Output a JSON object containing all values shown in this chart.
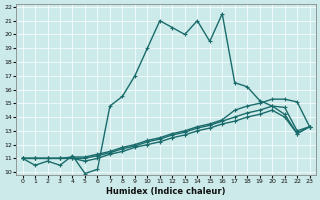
{
  "xlabel": "Humidex (Indice chaleur)",
  "xlim": [
    -0.5,
    23.5
  ],
  "ylim": [
    9.8,
    22.2
  ],
  "yticks": [
    10,
    11,
    12,
    13,
    14,
    15,
    16,
    17,
    18,
    19,
    20,
    21,
    22
  ],
  "xticks": [
    0,
    1,
    2,
    3,
    4,
    5,
    6,
    7,
    8,
    9,
    10,
    11,
    12,
    13,
    14,
    15,
    16,
    17,
    18,
    19,
    20,
    21,
    22,
    23
  ],
  "bg_color": "#cdeaea",
  "line_color": "#1a6b6b",
  "grid_color": "#b0d8d8",
  "lines": [
    {
      "x": [
        0,
        1,
        2,
        3,
        4,
        5,
        6,
        7,
        8,
        9,
        10,
        11,
        12,
        13,
        14,
        15,
        16,
        17,
        18,
        19,
        20,
        21,
        22,
        23
      ],
      "y": [
        11.0,
        10.5,
        10.8,
        10.5,
        11.2,
        9.9,
        10.2,
        14.8,
        15.5,
        17.0,
        19.0,
        21.0,
        20.5,
        20.0,
        21.0,
        19.5,
        21.5,
        16.5,
        16.2,
        15.2,
        14.8,
        14.2,
        12.8,
        13.3
      ],
      "marker": "+",
      "lw": 1.0
    },
    {
      "x": [
        0,
        1,
        2,
        3,
        4,
        5,
        6,
        7,
        8,
        9,
        10,
        11,
        12,
        13,
        14,
        15,
        16,
        17,
        18,
        19,
        20,
        21,
        22,
        23
      ],
      "y": [
        11.0,
        11.0,
        11.0,
        11.0,
        11.1,
        11.1,
        11.3,
        11.5,
        11.8,
        12.0,
        12.3,
        12.5,
        12.8,
        13.0,
        13.3,
        13.5,
        13.8,
        14.5,
        14.8,
        15.0,
        15.3,
        15.3,
        15.1,
        13.3
      ],
      "marker": "+",
      "lw": 1.0
    },
    {
      "x": [
        0,
        1,
        2,
        3,
        4,
        5,
        6,
        7,
        8,
        9,
        10,
        11,
        12,
        13,
        14,
        15,
        16,
        17,
        18,
        19,
        20,
        21,
        22,
        23
      ],
      "y": [
        11.0,
        11.0,
        11.0,
        11.0,
        11.0,
        11.0,
        11.2,
        11.4,
        11.7,
        11.9,
        12.2,
        12.4,
        12.7,
        12.9,
        13.2,
        13.4,
        13.7,
        14.0,
        14.3,
        14.5,
        14.8,
        14.7,
        13.0,
        13.3
      ],
      "marker": "+",
      "lw": 1.0
    },
    {
      "x": [
        0,
        1,
        2,
        3,
        4,
        5,
        6,
        7,
        8,
        9,
        10,
        11,
        12,
        13,
        14,
        15,
        16,
        17,
        18,
        19,
        20,
        21,
        22,
        23
      ],
      "y": [
        11.0,
        11.0,
        11.0,
        11.0,
        11.0,
        10.8,
        11.0,
        11.3,
        11.5,
        11.8,
        12.0,
        12.2,
        12.5,
        12.7,
        13.0,
        13.2,
        13.5,
        13.7,
        14.0,
        14.2,
        14.5,
        14.0,
        12.8,
        13.3
      ],
      "marker": "+",
      "lw": 1.0
    }
  ]
}
